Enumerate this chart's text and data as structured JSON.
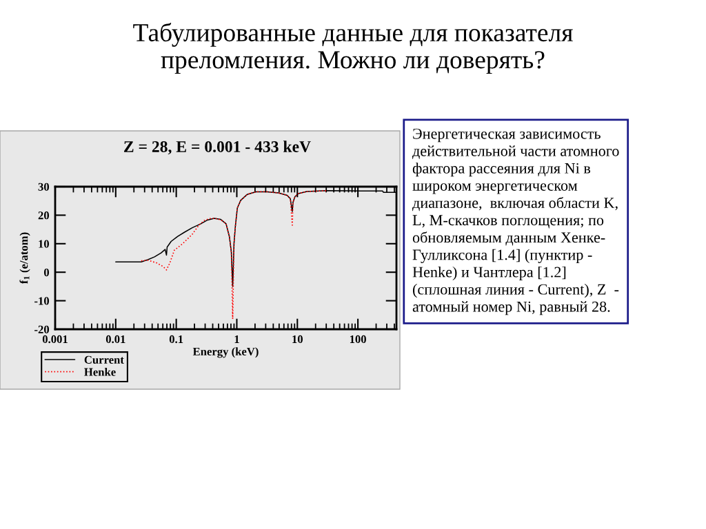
{
  "chart_data": {
    "type": "line",
    "title": "Табулированные данные для показателя\nпреломления. Можно ли доверять?",
    "subtitle": "Z = 28, E = 0.001 - 433 keV",
    "xlabel": "Energy (keV)",
    "ylabel": "f$_{1}$ (e/atom)",
    "annotations": [
      "Энергетическая зависимость\nдействительной части атомного\nфактора рассеяния для Ni в\nшироком энергетическом\nдиапазоне,  включая области K,\nL, M-скачков поглощения; по\nобновляемым данным Хенке-\nГулликсона [1.4] (пунктир -\nHenke) и Чантлера [1.2]\n(сплошная линия - Current), Z  -\nатомный номер Ni, равный 28."
    ],
    "log": "x",
    "xlim": [
      0.001,
      433
    ],
    "xticks": [
      0.001,
      0.01,
      0.1,
      1,
      10,
      100
    ],
    "ylim": [
      -20,
      30
    ],
    "yticks": [
      -20,
      -10,
      0,
      10,
      20,
      30
    ],
    "legend": "bottom left",
    "marker": "none",
    "series": [
      {
        "name": "Current",
        "color": "#000000",
        "line_style": "solid",
        "x": [
          0.01,
          0.0264,
          0.034,
          0.0438,
          0.0563,
          0.0655,
          0.0689,
          0.0707,
          0.0822,
          0.106,
          0.136,
          0.184,
          0.255,
          0.328,
          0.423,
          0.543,
          0.665,
          0.754,
          0.813,
          0.855,
          0.899,
          0.946,
          1.02,
          1.16,
          1.49,
          2.07,
          3.17,
          4.86,
          6.75,
          7.65,
          8.26,
          8.47,
          9.14,
          10.4,
          14.4,
          30.6,
          108,
          255,
          265,
          432
        ],
        "values": [
          3.6,
          3.6,
          4.4,
          5.4,
          6.8,
          8.0,
          6.0,
          8.8,
          10.8,
          12.6,
          14.0,
          15.6,
          17.0,
          18.3,
          18.9,
          18.5,
          17.0,
          12.5,
          7.0,
          -5.0,
          10,
          16,
          22.5,
          25.2,
          27.3,
          28.2,
          28.2,
          27.8,
          27.0,
          25.8,
          21.3,
          24.5,
          26.5,
          27.6,
          28.3,
          28.6,
          28.5,
          28.5,
          28.0,
          28.0
        ]
      },
      {
        "name": "Henke",
        "color": "#ff0000",
        "line_style": "dotted",
        "x": [
          0.0264,
          0.034,
          0.047,
          0.0607,
          0.0689,
          0.0782,
          0.0928,
          0.129,
          0.184,
          0.236,
          0.288,
          0.354,
          0.423,
          0.543,
          0.665,
          0.754,
          0.813,
          0.855,
          0.899,
          0.946,
          1.02,
          1.16,
          1.49,
          2.07,
          3.17,
          4.86,
          6.75,
          7.65,
          8.26,
          8.47,
          9.14,
          10.4,
          14.4,
          30.6
        ],
        "values": [
          4.0,
          4.2,
          3.3,
          2.0,
          0.8,
          3.2,
          7.7,
          10.1,
          13.3,
          16.5,
          18.1,
          18.8,
          18.9,
          18.4,
          17.0,
          12.5,
          7.0,
          -16.4,
          10,
          16,
          22.5,
          25.2,
          27.3,
          28.2,
          28.2,
          27.8,
          27.0,
          25.8,
          16.5,
          24.5,
          26.5,
          27.6,
          28.3,
          28.6
        ]
      }
    ]
  }
}
